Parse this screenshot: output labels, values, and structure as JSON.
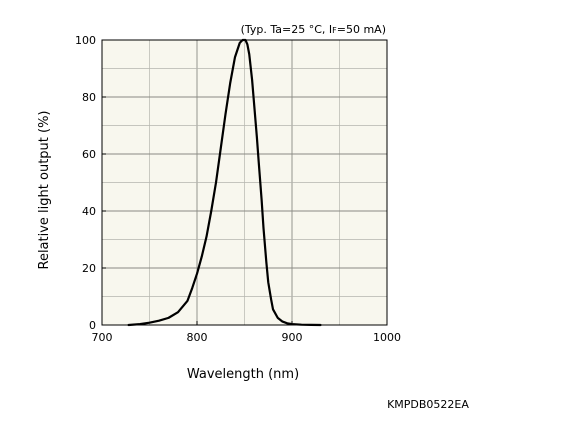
{
  "chart_data": {
    "type": "line",
    "annotation": {
      "prefix": "(Typ. Ta=25 °C, I",
      "subscript": "F",
      "suffix": "=50 mA)"
    },
    "xlabel": "Wavelength (nm)",
    "ylabel": "Relative light output (%)",
    "xlim": [
      700,
      1000
    ],
    "ylim": [
      0,
      100
    ],
    "x_ticks": [
      700,
      800,
      900,
      1000
    ],
    "y_ticks": [
      0,
      20,
      40,
      60,
      80,
      100
    ],
    "x_minor_step": 50,
    "y_minor_step": 10,
    "grid": true,
    "plot_background": "#f8f7ee",
    "line_color": "#000000",
    "series": [
      {
        "x": [
          728,
          740,
          750,
          760,
          770,
          780,
          790,
          795,
          800,
          805,
          810,
          815,
          820,
          825,
          830,
          835,
          840,
          845,
          848,
          851,
          853,
          855,
          858,
          860,
          863,
          865,
          868,
          870,
          873,
          875,
          878,
          880,
          885,
          890,
          895,
          900,
          910,
          920,
          930
        ],
        "y": [
          0,
          0.3,
          0.8,
          1.5,
          2.5,
          4.5,
          8.5,
          13,
          18,
          24,
          31,
          40,
          50,
          62,
          74,
          85,
          94,
          99,
          100,
          100,
          98.5,
          95,
          86,
          78,
          66,
          57,
          44,
          34,
          22,
          15,
          9,
          5.5,
          2.5,
          1.2,
          0.6,
          0.3,
          0.1,
          0.05,
          0
        ]
      }
    ]
  },
  "figure_code": "KMPDB0522EA"
}
